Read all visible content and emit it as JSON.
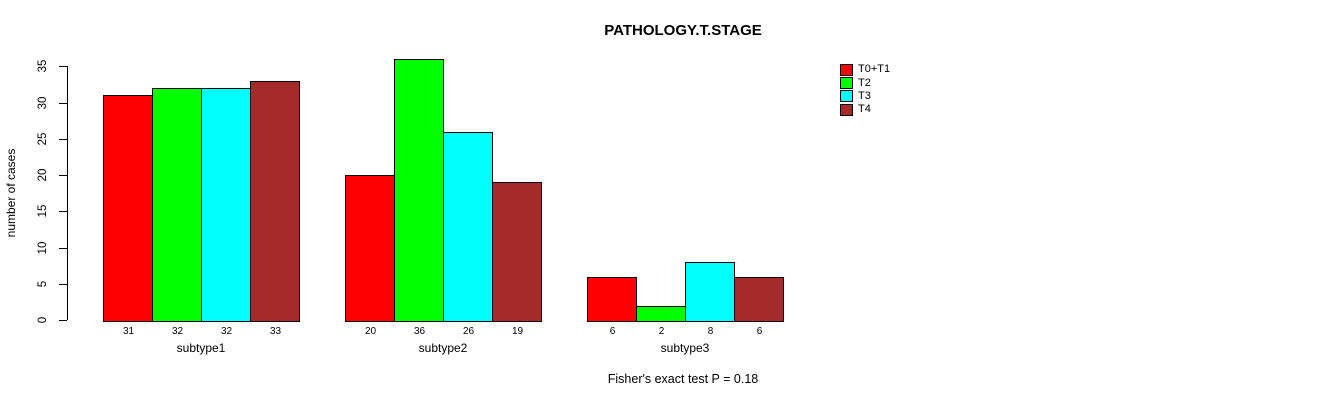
{
  "title": "PATHOLOGY.T.STAGE",
  "ylabel": "number of cases",
  "footer": "Fisher's exact test P = 0.18",
  "chart_data": {
    "type": "bar",
    "title": "PATHOLOGY.T.STAGE",
    "xlabel": "",
    "ylabel": "number of cases",
    "categories": [
      "subtype1",
      "subtype2",
      "subtype3"
    ],
    "series": [
      {
        "name": "T0+T1",
        "color": "#ff0000",
        "values": [
          31,
          20,
          6
        ]
      },
      {
        "name": "T2",
        "color": "#00ff00",
        "values": [
          32,
          36,
          2
        ]
      },
      {
        "name": "T3",
        "color": "#00ffff",
        "values": [
          32,
          26,
          8
        ]
      },
      {
        "name": "T4",
        "color": "#a52a2a",
        "values": [
          33,
          19,
          6
        ]
      }
    ],
    "bar_value_labels": [
      [
        "31",
        "32",
        "32",
        "33"
      ],
      [
        "20",
        "36",
        "26",
        "19"
      ],
      [
        "6",
        "2",
        "8",
        "6"
      ]
    ],
    "yticks": [
      "0",
      "5",
      "10",
      "15",
      "20",
      "25",
      "30",
      "35"
    ],
    "ylim": [
      0,
      35
    ],
    "grid": false,
    "legend_position": "right",
    "annotation": "Fisher's exact test P = 0.18"
  }
}
